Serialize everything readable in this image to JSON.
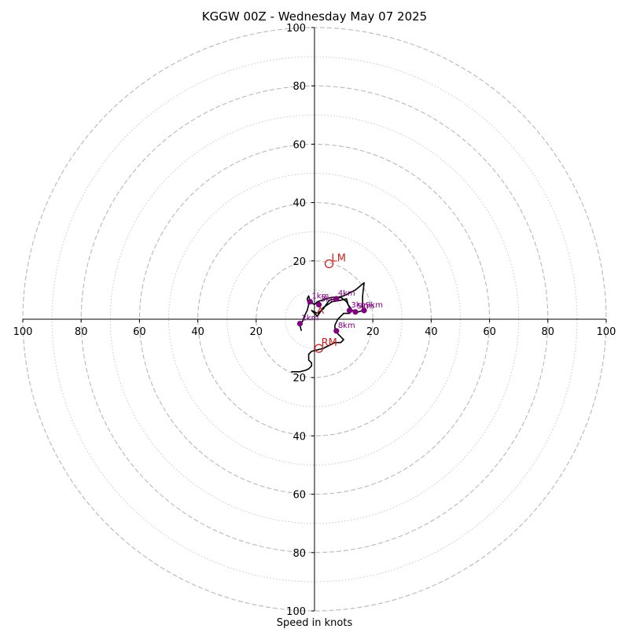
{
  "chart_data": {
    "type": "scatter",
    "kind": "hodograph",
    "title": "KGGW 00Z - Wednesday May 07 2025",
    "xlabel": "Speed in knots",
    "xlim": [
      -100,
      100
    ],
    "ylim": [
      -100,
      100
    ],
    "ring_major": [
      20,
      40,
      60,
      80,
      100
    ],
    "ring_minor": [
      10,
      30,
      50,
      70,
      90
    ],
    "x_ticks": [
      {
        "value": -100,
        "label": "100"
      },
      {
        "value": -80,
        "label": "80"
      },
      {
        "value": -60,
        "label": "60"
      },
      {
        "value": -40,
        "label": "40"
      },
      {
        "value": -20,
        "label": "20"
      },
      {
        "value": 20,
        "label": "20"
      },
      {
        "value": 40,
        "label": "40"
      },
      {
        "value": 60,
        "label": "60"
      },
      {
        "value": 80,
        "label": "80"
      },
      {
        "value": 100,
        "label": "100"
      }
    ],
    "y_ticks": [
      {
        "value": 100,
        "label": "100"
      },
      {
        "value": 80,
        "label": "80"
      },
      {
        "value": 60,
        "label": "60"
      },
      {
        "value": 40,
        "label": "40"
      },
      {
        "value": 20,
        "label": "20"
      },
      {
        "value": -20,
        "label": "20"
      },
      {
        "value": -40,
        "label": "40"
      },
      {
        "value": -60,
        "label": "60"
      },
      {
        "value": -80,
        "label": "80"
      },
      {
        "value": -100,
        "label": "100"
      }
    ],
    "grid": true,
    "hodograph_trace": {
      "color": "#000000",
      "points": [
        [
          -4.5,
          -4
        ],
        [
          -5,
          -2
        ],
        [
          -4,
          -0.5
        ],
        [
          -3.5,
          1
        ],
        [
          -2.5,
          3
        ],
        [
          -2,
          5
        ],
        [
          -2.5,
          7
        ],
        [
          -2,
          8
        ],
        [
          -1.5,
          6
        ],
        [
          0,
          5
        ],
        [
          1,
          6
        ],
        [
          4,
          7
        ],
        [
          6,
          7.5
        ],
        [
          8,
          7.5
        ],
        [
          10,
          8
        ],
        [
          14,
          10
        ],
        [
          17,
          12.5
        ],
        [
          16.5,
          8
        ],
        [
          16.5,
          3
        ],
        [
          15,
          2.5
        ],
        [
          13,
          3
        ],
        [
          11.5,
          5
        ],
        [
          11,
          7
        ],
        [
          9,
          6.5
        ],
        [
          6,
          6
        ],
        [
          3,
          4
        ],
        [
          1,
          1
        ],
        [
          0,
          2
        ],
        [
          -1,
          3
        ],
        [
          1,
          2
        ],
        [
          3,
          3.5
        ],
        [
          4,
          5
        ],
        [
          5,
          6.5
        ],
        [
          7,
          7
        ],
        [
          9,
          7.5
        ],
        [
          11,
          6
        ],
        [
          12,
          4
        ],
        [
          13,
          3
        ],
        [
          12,
          2
        ],
        [
          10,
          2
        ],
        [
          8,
          0
        ],
        [
          7,
          -2
        ],
        [
          7,
          -4
        ],
        [
          9,
          -6
        ],
        [
          10,
          -7
        ],
        [
          9,
          -8
        ],
        [
          7,
          -8
        ],
        [
          5,
          -9
        ],
        [
          3,
          -10
        ],
        [
          1,
          -10.5
        ],
        [
          -1,
          -11
        ],
        [
          -2,
          -12
        ],
        [
          -2,
          -14
        ],
        [
          -1,
          -15
        ],
        [
          -1,
          -16
        ],
        [
          -2,
          -17
        ],
        [
          -3,
          -17.5
        ],
        [
          -5,
          -18
        ],
        [
          -8,
          -18
        ]
      ]
    },
    "height_markers": {
      "color": "#800080",
      "points": [
        {
          "u": -1.5,
          "v": 6,
          "label": "1km"
        },
        {
          "u": -5,
          "v": -1.5,
          "label": "2km"
        },
        {
          "u": 1.5,
          "v": 5,
          "label": "3km"
        },
        {
          "u": 7.5,
          "v": 7,
          "label": "4km"
        },
        {
          "u": 12,
          "v": 3,
          "label": "3km"
        },
        {
          "u": 14,
          "v": 2.5,
          "label": "5km"
        },
        {
          "u": 17,
          "v": 3,
          "label": "9km"
        },
        {
          "u": 7.5,
          "v": -4,
          "label": "8km"
        }
      ]
    },
    "storm_motion": {
      "color": "#cc2222",
      "points": [
        {
          "u": 5,
          "v": 19,
          "label": "LM"
        },
        {
          "u": 1.5,
          "v": -10,
          "label": "RM"
        }
      ],
      "mean_wind": {
        "u": 2,
        "v": 3
      }
    }
  }
}
